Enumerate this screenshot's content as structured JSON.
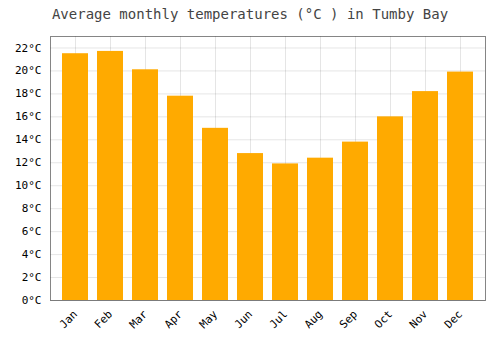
{
  "chart_data": {
    "type": "bar",
    "title": "Average monthly temperatures (°C ) in Tumby Bay",
    "categories": [
      "Jan",
      "Feb",
      "Mar",
      "Apr",
      "May",
      "Jun",
      "Jul",
      "Aug",
      "Sep",
      "Oct",
      "Nov",
      "Dec"
    ],
    "values": [
      21.5,
      21.7,
      20.1,
      17.8,
      15.0,
      12.8,
      11.9,
      12.4,
      13.8,
      16.0,
      18.2,
      19.9
    ],
    "color": "#FFAA00",
    "ylim": [
      0,
      23
    ],
    "yticks": [
      {
        "value": 0,
        "label": "0°C"
      },
      {
        "value": 2,
        "label": "2°C"
      },
      {
        "value": 4,
        "label": "4°C"
      },
      {
        "value": 6,
        "label": "6°C"
      },
      {
        "value": 8,
        "label": "8°C"
      },
      {
        "value": 10,
        "label": "10°C"
      },
      {
        "value": 12,
        "label": "12°C"
      },
      {
        "value": 14,
        "label": "14°C"
      },
      {
        "value": 16,
        "label": "16°C"
      },
      {
        "value": 18,
        "label": "18°C"
      },
      {
        "value": 20,
        "label": "20°C"
      },
      {
        "value": 22,
        "label": "22°C"
      }
    ],
    "grid": true
  }
}
